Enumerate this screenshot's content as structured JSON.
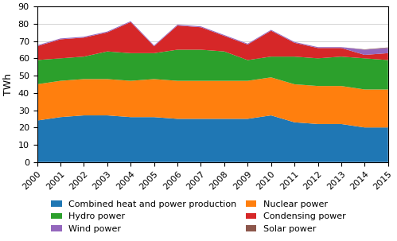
{
  "chart_data": {
    "type": "area",
    "stacked": true,
    "x": [
      2000,
      2001,
      2002,
      2003,
      2004,
      2005,
      2006,
      2007,
      2008,
      2009,
      2010,
      2011,
      2012,
      2013,
      2014,
      2015
    ],
    "series": [
      {
        "name": "Combined heat and power production",
        "values": [
          24,
          26,
          27,
          27,
          26,
          26,
          25,
          25,
          25,
          25,
          27,
          23,
          22,
          22,
          20,
          20
        ]
      },
      {
        "name": "Nuclear power",
        "values": [
          21,
          21,
          21,
          21,
          21,
          22,
          22,
          22,
          22,
          22,
          22,
          22,
          22,
          22,
          22,
          22
        ]
      },
      {
        "name": "Hydro power",
        "values": [
          14,
          13,
          13,
          16,
          16,
          15,
          18,
          18,
          17,
          12,
          12,
          16,
          16,
          17,
          18,
          17
        ]
      },
      {
        "name": "Condensing power",
        "values": [
          8,
          11,
          11,
          11,
          18,
          4,
          14,
          13,
          9,
          9,
          15,
          8,
          6,
          5,
          2,
          4
        ]
      },
      {
        "name": "Wind power",
        "values": [
          0.5,
          0.5,
          0.5,
          0.5,
          0.5,
          0.5,
          0.5,
          0.5,
          0.5,
          0.5,
          0.5,
          0.5,
          0.5,
          0.5,
          3,
          3
        ]
      },
      {
        "name": "Solar power",
        "values": [
          0,
          0,
          0,
          0,
          0,
          0,
          0,
          0,
          0,
          0,
          0,
          0,
          0,
          0,
          0.2,
          0.3
        ]
      }
    ],
    "ylabel": "TWh",
    "xlim": [
      2000,
      2015
    ],
    "xticks": [
      2000,
      2001,
      2002,
      2003,
      2004,
      2005,
      2006,
      2007,
      2008,
      2009,
      2010,
      2011,
      2012,
      2013,
      2014,
      2015
    ],
    "ylim": [
      0,
      90
    ],
    "yticks": [
      0,
      10,
      20,
      30,
      40,
      50,
      60,
      70,
      80,
      90
    ],
    "grid": true,
    "legend": "lower center"
  }
}
